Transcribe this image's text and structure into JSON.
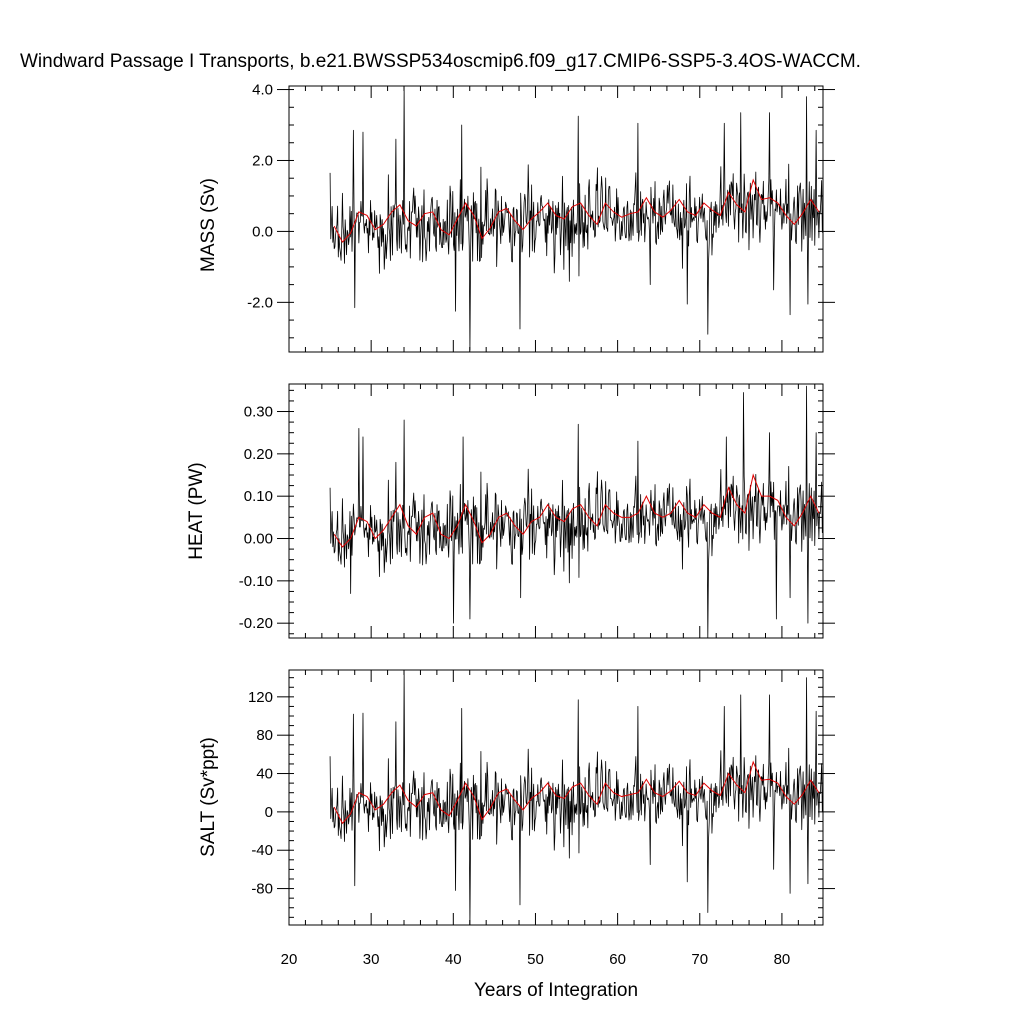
{
  "chart_data": {
    "title": "Windward Passage I Transports, b.e21.BWSSP534oscmip6.f09_g17.CMIP6-SSP5-3.4OS-WACCM.",
    "xlabel": "Years of Integration",
    "xlim": [
      20,
      85
    ],
    "xticks": [
      20,
      30,
      40,
      50,
      60,
      70,
      80
    ],
    "panels": [
      {
        "type": "line",
        "ylabel": "MASS (Sv)",
        "ylim": [
          -3.4,
          4.1
        ],
        "yticks": [
          -2.0,
          0.0,
          2.0,
          4.0
        ],
        "ytick_labels": [
          "-2.0",
          "0.0",
          "2.0",
          "4.0"
        ],
        "yminor_step": 0.5,
        "series": [
          {
            "role": "monthly",
            "color": "#000000",
            "x_start": 25.0,
            "x_end": 85.0,
            "n": 720,
            "baseline": 0.05,
            "trend_per_year": 0.009,
            "noise_sd": 0.55,
            "spikes": [
              [
                25.0,
                1.65
              ],
              [
                27.8,
                2.85
              ],
              [
                28.0,
                -2.15
              ],
              [
                29.0,
                2.8
              ],
              [
                33.0,
                2.6
              ],
              [
                34.0,
                4.1
              ],
              [
                40.3,
                -2.25
              ],
              [
                41.0,
                3.0
              ],
              [
                42.0,
                -3.35
              ],
              [
                48.1,
                -2.75
              ],
              [
                55.2,
                3.25
              ],
              [
                62.5,
                3.05
              ],
              [
                64.0,
                -1.5
              ],
              [
                68.5,
                -2.05
              ],
              [
                71.0,
                -2.9
              ],
              [
                73.0,
                3.05
              ],
              [
                75.0,
                3.35
              ],
              [
                78.5,
                3.35
              ],
              [
                79.0,
                -1.65
              ],
              [
                81.0,
                -2.35
              ],
              [
                83.0,
                3.8
              ],
              [
                83.2,
                -2.05
              ],
              [
                84.2,
                2.85
              ]
            ]
          },
          {
            "role": "annual-mean",
            "color": "#e00000",
            "x": [
              25.5,
              26.5,
              27.5,
              28.5,
              29.5,
              30.5,
              31.5,
              32.5,
              33.5,
              34.5,
              35.5,
              36.5,
              37.5,
              38.5,
              39.5,
              40.5,
              41.5,
              42.5,
              43.5,
              44.5,
              45.5,
              46.5,
              47.5,
              48.5,
              49.5,
              50.5,
              51.5,
              52.5,
              53.5,
              54.5,
              55.5,
              56.5,
              57.5,
              58.5,
              59.5,
              60.5,
              61.5,
              62.5,
              63.5,
              64.5,
              65.5,
              66.5,
              67.5,
              68.5,
              69.5,
              70.5,
              71.5,
              72.5,
              73.5,
              74.5,
              75.5,
              76.5,
              77.5,
              78.5,
              79.5,
              80.5,
              81.5,
              82.5,
              83.5,
              84.5
            ],
            "y": [
              0.15,
              -0.3,
              -0.05,
              0.55,
              0.45,
              0.05,
              0.2,
              0.55,
              0.75,
              0.3,
              0.15,
              0.5,
              0.55,
              0.05,
              -0.1,
              0.35,
              0.8,
              0.45,
              -0.2,
              0.1,
              0.55,
              0.65,
              0.3,
              0.05,
              0.35,
              0.55,
              0.8,
              0.45,
              0.35,
              0.7,
              0.8,
              0.45,
              0.2,
              0.8,
              0.55,
              0.4,
              0.5,
              0.55,
              0.95,
              0.55,
              0.4,
              0.6,
              0.9,
              0.55,
              0.45,
              0.8,
              0.6,
              0.45,
              1.1,
              0.75,
              0.55,
              1.45,
              0.9,
              0.95,
              0.8,
              0.45,
              0.2,
              0.5,
              0.9,
              0.55
            ]
          }
        ]
      },
      {
        "type": "line",
        "ylabel": "HEAT (PW)",
        "ylim": [
          -0.235,
          0.365
        ],
        "yticks": [
          -0.2,
          -0.1,
          0.0,
          0.1,
          0.2,
          0.3
        ],
        "ytick_labels": [
          "-0.20",
          "-0.10",
          "0.00",
          "0.10",
          "0.20",
          "0.30"
        ],
        "yminor_step": 0.025,
        "series": [
          {
            "role": "monthly",
            "color": "#000000",
            "x_start": 25.0,
            "x_end": 85.0,
            "n": 720,
            "baseline": 0.01,
            "trend_per_year": 0.0009,
            "noise_sd": 0.045,
            "spikes": [
              [
                25.0,
                0.12
              ],
              [
                27.5,
                -0.13
              ],
              [
                28.5,
                0.26
              ],
              [
                29.0,
                0.24
              ],
              [
                33.0,
                0.18
              ],
              [
                34.0,
                0.28
              ],
              [
                40.0,
                -0.2
              ],
              [
                41.2,
                0.24
              ],
              [
                42.0,
                -0.19
              ],
              [
                48.2,
                -0.14
              ],
              [
                55.2,
                0.27
              ],
              [
                62.5,
                0.23
              ],
              [
                71.0,
                -0.235
              ],
              [
                73.2,
                0.24
              ],
              [
                75.3,
                0.345
              ],
              [
                78.5,
                0.25
              ],
              [
                79.3,
                -0.19
              ],
              [
                81.0,
                -0.14
              ],
              [
                83.0,
                0.36
              ],
              [
                83.2,
                -0.2
              ],
              [
                84.2,
                0.25
              ]
            ]
          },
          {
            "role": "annual-mean",
            "color": "#e00000",
            "x": [
              25.5,
              26.5,
              27.5,
              28.5,
              29.5,
              30.5,
              31.5,
              32.5,
              33.5,
              34.5,
              35.5,
              36.5,
              37.5,
              38.5,
              39.5,
              40.5,
              41.5,
              42.5,
              43.5,
              44.5,
              45.5,
              46.5,
              47.5,
              48.5,
              49.5,
              50.5,
              51.5,
              52.5,
              53.5,
              54.5,
              55.5,
              56.5,
              57.5,
              58.5,
              59.5,
              60.5,
              61.5,
              62.5,
              63.5,
              64.5,
              65.5,
              66.5,
              67.5,
              68.5,
              69.5,
              70.5,
              71.5,
              72.5,
              73.5,
              74.5,
              75.5,
              76.5,
              77.5,
              78.5,
              79.5,
              80.5,
              81.5,
              82.5,
              83.5,
              84.5
            ],
            "y": [
              0.01,
              -0.02,
              0.0,
              0.05,
              0.04,
              0.0,
              0.02,
              0.05,
              0.08,
              0.03,
              0.01,
              0.05,
              0.06,
              0.01,
              0.0,
              0.03,
              0.08,
              0.04,
              -0.01,
              0.01,
              0.05,
              0.06,
              0.03,
              0.01,
              0.04,
              0.05,
              0.08,
              0.05,
              0.04,
              0.07,
              0.08,
              0.05,
              0.03,
              0.08,
              0.06,
              0.05,
              0.05,
              0.06,
              0.1,
              0.06,
              0.05,
              0.06,
              0.09,
              0.06,
              0.05,
              0.08,
              0.06,
              0.05,
              0.12,
              0.08,
              0.06,
              0.15,
              0.1,
              0.1,
              0.09,
              0.05,
              0.03,
              0.06,
              0.1,
              0.06
            ]
          }
        ]
      },
      {
        "type": "line",
        "ylabel": "SALT (Sv*ppt)",
        "ylim": [
          -118,
          148
        ],
        "yticks": [
          -80,
          -40,
          0,
          40,
          80,
          120
        ],
        "ytick_labels": [
          "-80",
          "-40",
          "0",
          "40",
          "80",
          "120"
        ],
        "yminor_step": 10,
        "series": [
          {
            "role": "monthly",
            "color": "#000000",
            "x_start": 25.0,
            "x_end": 85.0,
            "n": 720,
            "baseline": 2.0,
            "trend_per_year": 0.32,
            "noise_sd": 19.0,
            "spikes": [
              [
                25.0,
                58
              ],
              [
                27.8,
                102
              ],
              [
                28.0,
                -77
              ],
              [
                29.0,
                103
              ],
              [
                33.0,
                94
              ],
              [
                34.0,
                148
              ],
              [
                40.3,
                -82
              ],
              [
                41.0,
                108
              ],
              [
                42.0,
                -118
              ],
              [
                48.1,
                -97
              ],
              [
                55.2,
                117
              ],
              [
                62.5,
                110
              ],
              [
                64.0,
                -55
              ],
              [
                68.5,
                -73
              ],
              [
                71.0,
                -105
              ],
              [
                73.0,
                110
              ],
              [
                75.0,
                122
              ],
              [
                78.5,
                122
              ],
              [
                79.0,
                -60
              ],
              [
                81.0,
                -85
              ],
              [
                83.0,
                140
              ],
              [
                83.2,
                -75
              ],
              [
                84.2,
                105
              ]
            ]
          },
          {
            "role": "annual-mean",
            "color": "#e00000",
            "x": [
              25.5,
              26.5,
              27.5,
              28.5,
              29.5,
              30.5,
              31.5,
              32.5,
              33.5,
              34.5,
              35.5,
              36.5,
              37.5,
              38.5,
              39.5,
              40.5,
              41.5,
              42.5,
              43.5,
              44.5,
              45.5,
              46.5,
              47.5,
              48.5,
              49.5,
              50.5,
              51.5,
              52.5,
              53.5,
              54.5,
              55.5,
              56.5,
              57.5,
              58.5,
              59.5,
              60.5,
              61.5,
              62.5,
              63.5,
              64.5,
              65.5,
              66.5,
              67.5,
              68.5,
              69.5,
              70.5,
              71.5,
              72.5,
              73.5,
              74.5,
              75.5,
              76.5,
              77.5,
              78.5,
              79.5,
              80.5,
              81.5,
              82.5,
              83.5,
              84.5
            ],
            "y": [
              5,
              -12,
              -2,
              20,
              16,
              2,
              8,
              20,
              28,
              12,
              5,
              18,
              20,
              2,
              -4,
              12,
              30,
              16,
              -8,
              4,
              20,
              24,
              12,
              2,
              14,
              20,
              30,
              17,
              14,
              26,
              30,
              17,
              8,
              30,
              20,
              16,
              18,
              20,
              34,
              20,
              16,
              22,
              32,
              20,
              17,
              30,
              22,
              17,
              40,
              28,
              20,
              52,
              33,
              34,
              30,
              16,
              8,
              18,
              33,
              20
            ]
          }
        ]
      }
    ]
  }
}
